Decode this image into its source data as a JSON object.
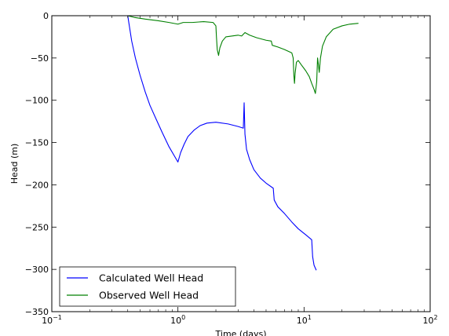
{
  "chart_data": {
    "type": "line",
    "title": "",
    "xlabel": "Time (days)",
    "ylabel": "Head (m)",
    "xscale": "log",
    "xlim": [
      0.1,
      100
    ],
    "ylim": [
      -350,
      0
    ],
    "x_ticks": [
      {
        "value": 0.1,
        "base": "10",
        "exp": "−1"
      },
      {
        "value": 1,
        "base": "10",
        "exp": "0"
      },
      {
        "value": 10,
        "base": "10",
        "exp": "1"
      },
      {
        "value": 100,
        "base": "10",
        "exp": "2"
      }
    ],
    "y_ticks": [
      0,
      -50,
      -100,
      -150,
      -200,
      -250,
      -300,
      -350
    ],
    "y_tick_labels": [
      "0",
      "−50",
      "−100",
      "−150",
      "−200",
      "−250",
      "−300",
      "−350"
    ],
    "grid": false,
    "legend_position": "lower-left",
    "series": [
      {
        "name": "Calculated Well Head",
        "color": "#0000ff",
        "points": [
          [
            0.4,
            0
          ],
          [
            0.43,
            -30
          ],
          [
            0.46,
            -50
          ],
          [
            0.5,
            -70
          ],
          [
            0.55,
            -90
          ],
          [
            0.6,
            -106
          ],
          [
            0.67,
            -122
          ],
          [
            0.75,
            -138
          ],
          [
            0.85,
            -155
          ],
          [
            1.0,
            -173
          ],
          [
            1.05,
            -162
          ],
          [
            1.12,
            -152
          ],
          [
            1.2,
            -143
          ],
          [
            1.35,
            -135
          ],
          [
            1.5,
            -130
          ],
          [
            1.7,
            -127
          ],
          [
            2.0,
            -126
          ],
          [
            2.5,
            -128
          ],
          [
            3.0,
            -131
          ],
          [
            3.3,
            -133
          ],
          [
            3.35,
            -103
          ],
          [
            3.4,
            -140
          ],
          [
            3.5,
            -158
          ],
          [
            3.7,
            -170
          ],
          [
            4.0,
            -182
          ],
          [
            4.5,
            -192
          ],
          [
            5.0,
            -198
          ],
          [
            5.7,
            -204
          ],
          [
            5.8,
            -218
          ],
          [
            6.2,
            -226
          ],
          [
            7.0,
            -234
          ],
          [
            8.0,
            -244
          ],
          [
            9.0,
            -252
          ],
          [
            10.5,
            -260
          ],
          [
            11.5,
            -265
          ],
          [
            11.7,
            -285
          ],
          [
            12.0,
            -295
          ],
          [
            12.5,
            -301
          ]
        ]
      },
      {
        "name": "Observed Well Head",
        "color": "#008000",
        "points": [
          [
            0.4,
            0
          ],
          [
            0.45,
            -2
          ],
          [
            0.55,
            -4
          ],
          [
            0.7,
            -6
          ],
          [
            0.85,
            -8
          ],
          [
            1.0,
            -10
          ],
          [
            1.1,
            -8
          ],
          [
            1.3,
            -8
          ],
          [
            1.6,
            -7
          ],
          [
            1.9,
            -8
          ],
          [
            2.0,
            -12
          ],
          [
            2.02,
            -25
          ],
          [
            2.05,
            -40
          ],
          [
            2.1,
            -47
          ],
          [
            2.15,
            -38
          ],
          [
            2.25,
            -30
          ],
          [
            2.4,
            -25
          ],
          [
            2.7,
            -24
          ],
          [
            3.0,
            -23
          ],
          [
            3.2,
            -24
          ],
          [
            3.4,
            -20
          ],
          [
            3.7,
            -23
          ],
          [
            4.2,
            -26
          ],
          [
            5.0,
            -29
          ],
          [
            5.5,
            -30
          ],
          [
            5.6,
            -35
          ],
          [
            6.2,
            -37
          ],
          [
            7.0,
            -40
          ],
          [
            8.0,
            -44
          ],
          [
            8.2,
            -50
          ],
          [
            8.3,
            -70
          ],
          [
            8.4,
            -80
          ],
          [
            8.5,
            -68
          ],
          [
            8.7,
            -55
          ],
          [
            9.0,
            -53
          ],
          [
            9.5,
            -58
          ],
          [
            10.3,
            -65
          ],
          [
            11.0,
            -72
          ],
          [
            11.5,
            -80
          ],
          [
            12.0,
            -87
          ],
          [
            12.3,
            -92
          ],
          [
            12.6,
            -78
          ],
          [
            12.8,
            -50
          ],
          [
            13.0,
            -58
          ],
          [
            13.2,
            -67
          ],
          [
            13.5,
            -50
          ],
          [
            14.0,
            -36
          ],
          [
            15.0,
            -25
          ],
          [
            17.0,
            -16
          ],
          [
            20.0,
            -12
          ],
          [
            23.0,
            -10
          ],
          [
            27.0,
            -9
          ]
        ]
      }
    ]
  }
}
